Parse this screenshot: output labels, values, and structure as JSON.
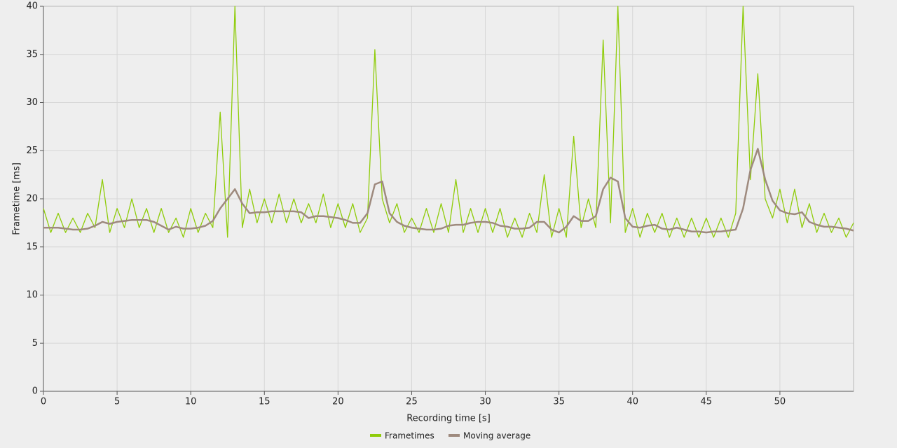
{
  "chart_data": {
    "type": "line",
    "x_label": "Recording time [s]",
    "y_label": "Frametime [ms]",
    "xlim": [
      0,
      55
    ],
    "xticks": [
      0,
      5,
      10,
      15,
      20,
      25,
      30,
      35,
      40,
      45,
      50
    ],
    "ylim": [
      0,
      40
    ],
    "yticks": [
      0,
      5,
      10,
      15,
      20,
      25,
      30,
      35,
      40
    ],
    "grid": true,
    "legend": "bottom",
    "x": [
      0,
      0.5,
      1,
      1.5,
      2,
      2.5,
      3,
      3.5,
      4,
      4.5,
      5,
      5.5,
      6,
      6.5,
      7,
      7.5,
      8,
      8.5,
      9,
      9.5,
      10,
      10.5,
      11,
      11.5,
      12,
      12.5,
      13,
      13.5,
      14,
      14.5,
      15,
      15.5,
      16,
      16.5,
      17,
      17.5,
      18,
      18.5,
      19,
      19.5,
      20,
      20.5,
      21,
      21.5,
      22,
      22.5,
      23,
      23.5,
      24,
      24.5,
      25,
      25.5,
      26,
      26.5,
      27,
      27.5,
      28,
      28.5,
      29,
      29.5,
      30,
      30.5,
      31,
      31.5,
      32,
      32.5,
      33,
      33.5,
      34,
      34.5,
      35,
      35.5,
      36,
      36.5,
      37,
      37.5,
      38,
      38.5,
      39,
      39.5,
      40,
      40.5,
      41,
      41.5,
      42,
      42.5,
      43,
      43.5,
      44,
      44.5,
      45,
      45.5,
      46,
      46.5,
      47,
      47.5,
      48,
      48.5,
      49,
      49.5,
      50,
      50.5,
      51,
      51.5,
      52,
      52.5,
      53,
      53.5,
      54,
      54.5,
      55
    ],
    "series": [
      {
        "name": "Frametimes",
        "color": "#8fcc0a",
        "values": [
          19,
          16.5,
          18.5,
          16.5,
          18,
          16.5,
          18.5,
          17,
          22,
          16.5,
          19,
          17,
          20,
          17,
          19,
          16.5,
          19,
          16.5,
          18,
          16,
          19,
          16.5,
          18.5,
          17,
          29,
          16,
          40,
          17,
          21,
          17.5,
          20,
          17.5,
          20.5,
          17.5,
          20,
          17.5,
          19.5,
          17.5,
          20.5,
          17,
          19.5,
          17,
          19.5,
          16.5,
          18,
          35.5,
          20,
          17.5,
          19.5,
          16.5,
          18,
          16.5,
          19,
          16.5,
          19.5,
          16.5,
          22,
          16.5,
          19,
          16.5,
          19,
          16.5,
          19,
          16,
          18,
          16,
          18.5,
          16.5,
          22.5,
          16,
          19,
          16,
          26.5,
          17,
          20,
          17,
          36.5,
          17.5,
          40,
          16.5,
          19,
          16,
          18.5,
          16.5,
          18.5,
          16,
          18,
          16,
          18,
          16,
          18,
          16,
          18,
          16,
          18.5,
          40,
          22,
          33,
          20,
          18,
          21,
          17.5,
          21,
          17,
          19.5,
          16.5,
          18.5,
          16.5,
          18,
          16,
          17.5
        ]
      },
      {
        "name": "Moving average",
        "color": "#9e8a7e",
        "values": [
          17,
          17,
          17,
          16.9,
          16.8,
          16.8,
          16.9,
          17.2,
          17.6,
          17.4,
          17.6,
          17.7,
          17.8,
          17.8,
          17.8,
          17.6,
          17.2,
          16.8,
          17.1,
          16.9,
          16.9,
          17,
          17.2,
          17.7,
          19,
          20,
          21,
          19.5,
          18.5,
          18.6,
          18.6,
          18.7,
          18.7,
          18.7,
          18.7,
          18.6,
          18,
          18.2,
          18.2,
          18.1,
          18,
          17.8,
          17.5,
          17.5,
          18.5,
          21.5,
          21.8,
          18.5,
          17.6,
          17.2,
          17,
          16.9,
          16.8,
          16.8,
          16.9,
          17.2,
          17.3,
          17.3,
          17.5,
          17.6,
          17.6,
          17.5,
          17.2,
          17.1,
          16.9,
          16.9,
          17,
          17.6,
          17.6,
          16.8,
          16.5,
          17.1,
          18.2,
          17.7,
          17.7,
          18.2,
          21,
          22.2,
          21.8,
          18,
          17.1,
          17,
          17.2,
          17.3,
          16.9,
          16.8,
          17,
          16.8,
          16.6,
          16.6,
          16.5,
          16.6,
          16.6,
          16.7,
          16.8,
          19,
          23,
          25.2,
          22,
          19.8,
          18.8,
          18.5,
          18.4,
          18.6,
          17.6,
          17.3,
          17.1,
          17.1,
          17,
          16.9,
          16.7
        ]
      }
    ]
  }
}
